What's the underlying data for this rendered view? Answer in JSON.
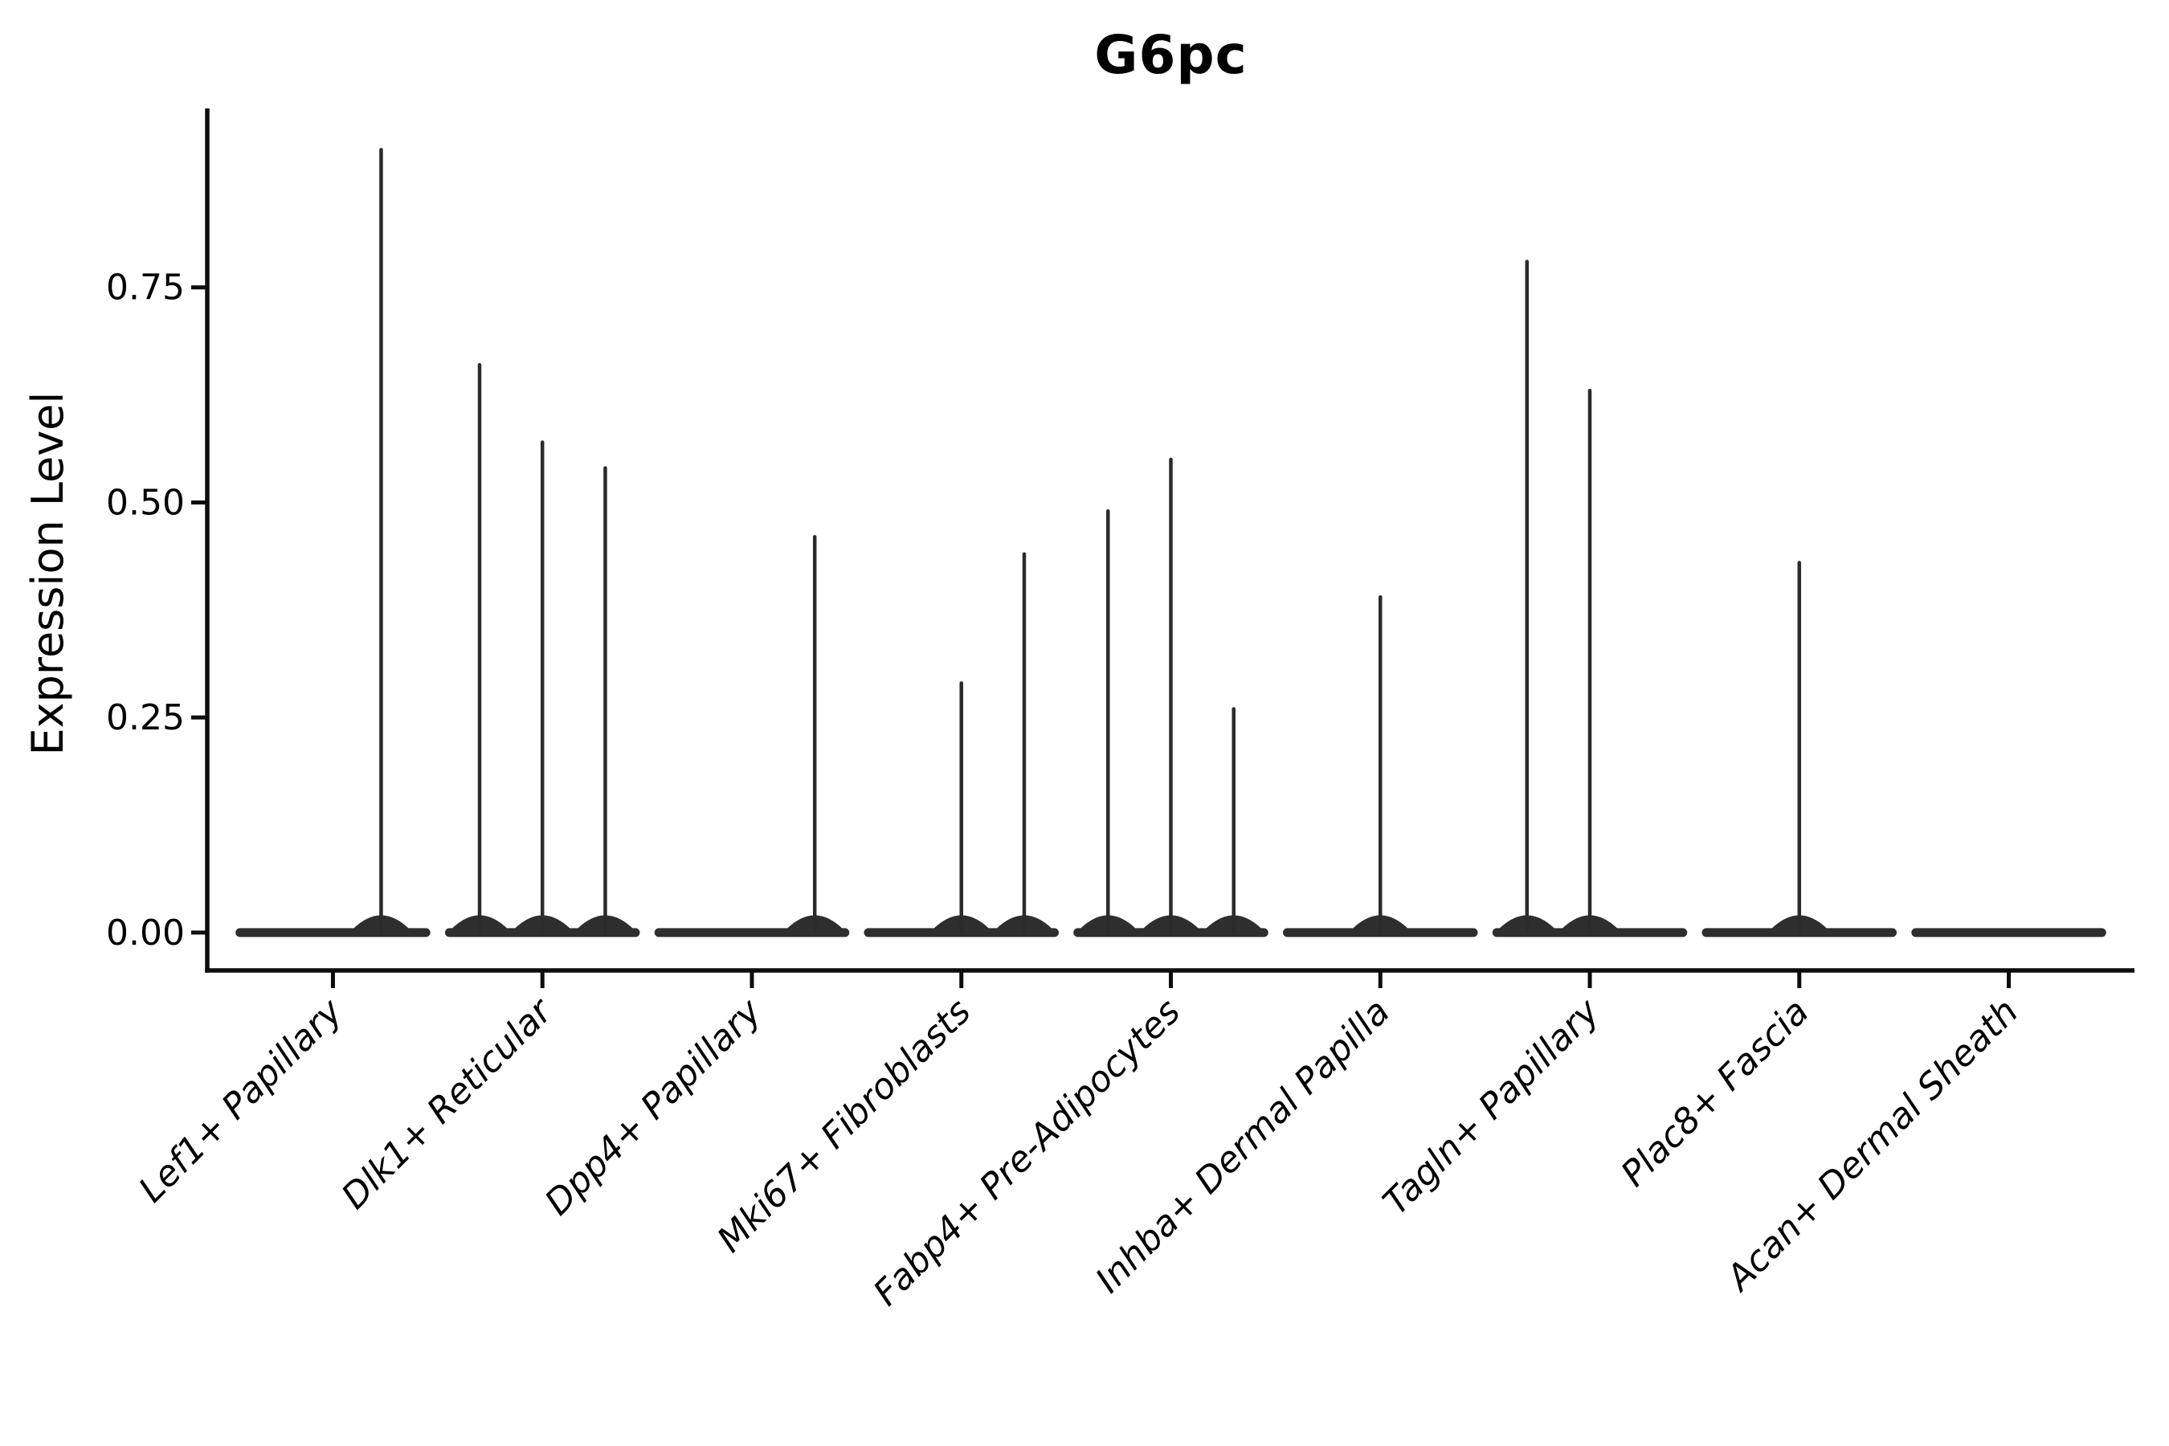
{
  "header": {
    "title": "G6pc"
  },
  "chart_data": {
    "type": "violin",
    "title": "G6pc",
    "xlabel": "",
    "ylabel": "Expression Level",
    "ylim": [
      -0.044,
      0.958
    ],
    "yticks": [
      0,
      0.25,
      0.5,
      0.75
    ],
    "ytick_labels": [
      "0.00",
      "0.25",
      "0.50",
      "0.75"
    ],
    "grid": false,
    "legend": "none",
    "x_tick_label_angle_deg": 45,
    "x_tick_label_style": "italic",
    "categories": [
      "Lef1+ Papillary",
      "Dlk1+ Reticular",
      "Dpp4+ Papillary",
      "Mki67+ Fibroblasts",
      "Fabp4+ Pre-Adipocytes",
      "Inhba+ Dermal Papilla",
      "Tagln+ Papillary",
      "Plac8+ Fascia",
      "Acan+ Dermal Sheath"
    ],
    "violins": [
      {
        "category": "Lef1+ Papillary",
        "baseline": 0.0,
        "spikes": [
          {
            "offset": 0.23,
            "max": 0.91
          }
        ]
      },
      {
        "category": "Dlk1+ Reticular",
        "baseline": 0.0,
        "spikes": [
          {
            "offset": -0.3,
            "max": 0.66
          },
          {
            "offset": 0.0,
            "max": 0.57
          },
          {
            "offset": 0.3,
            "max": 0.54
          }
        ]
      },
      {
        "category": "Dpp4+ Papillary",
        "baseline": 0.0,
        "spikes": [
          {
            "offset": 0.3,
            "max": 0.46
          }
        ]
      },
      {
        "category": "Mki67+ Fibroblasts",
        "baseline": 0.0,
        "spikes": [
          {
            "offset": 0.0,
            "max": 0.29
          },
          {
            "offset": 0.3,
            "max": 0.44
          }
        ]
      },
      {
        "category": "Fabp4+ Pre-Adipocytes",
        "baseline": 0.0,
        "spikes": [
          {
            "offset": -0.3,
            "max": 0.49
          },
          {
            "offset": 0.0,
            "max": 0.55
          },
          {
            "offset": 0.3,
            "max": 0.26
          }
        ]
      },
      {
        "category": "Inhba+ Dermal Papilla",
        "baseline": 0.0,
        "spikes": [
          {
            "offset": 0.0,
            "max": 0.39
          }
        ]
      },
      {
        "category": "Tagln+ Papillary",
        "baseline": 0.0,
        "spikes": [
          {
            "offset": -0.3,
            "max": 0.78
          },
          {
            "offset": 0.0,
            "max": 0.63
          }
        ]
      },
      {
        "category": "Plac8+ Fascia",
        "baseline": 0.0,
        "spikes": [
          {
            "offset": 0.0,
            "max": 0.43
          }
        ]
      },
      {
        "category": "Acan+ Dermal Sheath",
        "baseline": 0.0,
        "spikes": []
      }
    ],
    "colors": {
      "ink": "#0d0d0d",
      "violin_fill": "#2e2e2e",
      "spike_stroke": "#2b2b2b",
      "background": "#ffffff"
    }
  }
}
